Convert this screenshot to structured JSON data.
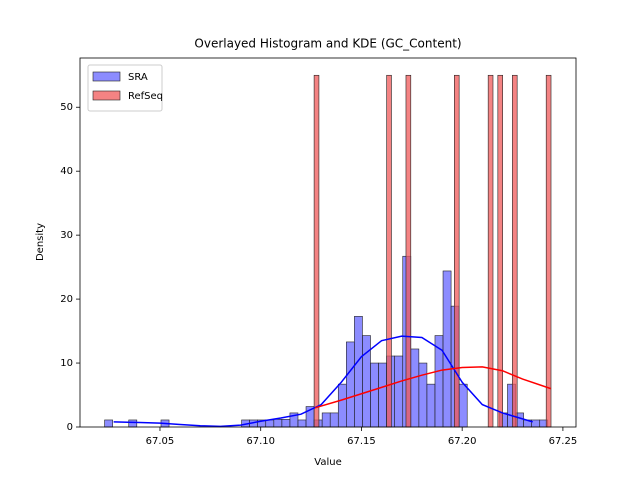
{
  "chart_data": {
    "type": "histogram",
    "title": "Overlayed Histogram and KDE (GC_Content)",
    "xlabel": "Value",
    "ylabel": "Density",
    "xlim": [
      67.0103,
      67.2565
    ],
    "ylim": [
      0,
      57.7
    ],
    "xticks": [
      67.05,
      {
        "value": 67.1,
        "label": "67.10"
      },
      67.15,
      {
        "value": 67.2,
        "label": "67.20"
      },
      67.25
    ],
    "yticks": [
      0,
      10,
      20,
      30,
      40,
      50
    ],
    "legend": "upper left",
    "series": [
      {
        "name": "SRA",
        "color": "#6666ff",
        "kde_color": "#0000ff",
        "bins": [
          67.0225,
          67.0265,
          67.0305,
          67.0345,
          67.0385,
          67.0425,
          67.0465,
          67.0505,
          67.0545,
          67.0585,
          67.0625,
          67.0665,
          67.0705,
          67.0745,
          67.0785,
          67.0825,
          67.0865,
          67.0905,
          67.0945,
          67.0985,
          67.1025,
          67.1065,
          67.1105,
          67.1145,
          67.1185,
          67.1225,
          67.1265,
          67.1305,
          67.1345,
          67.1385,
          67.1425,
          67.1465,
          67.1505,
          67.1545,
          67.1585,
          67.1625,
          67.1665,
          67.1705,
          67.1745,
          67.1785,
          67.1825,
          67.1865,
          67.1905,
          67.1945,
          67.1985,
          67.2025,
          67.2065,
          67.2105,
          67.2145,
          67.2185,
          67.2225,
          67.2265,
          67.2305,
          67.2345,
          67.2385,
          67.2425
        ],
        "values": [
          1.1,
          0,
          0,
          1.1,
          0,
          0,
          0,
          1.1,
          0,
          0,
          0,
          0,
          0,
          0,
          0,
          0,
          0,
          1.1,
          1.1,
          1.1,
          1.1,
          1.2,
          1.2,
          2.2,
          1.1,
          3.2,
          1.1,
          2.2,
          2.2,
          6.7,
          13.3,
          17.3,
          14.3,
          10,
          10,
          11.1,
          11.1,
          26.7,
          12.2,
          10,
          6.7,
          14.3,
          24.4,
          18.9,
          6.7,
          0,
          0,
          0,
          0,
          2.2,
          6.7,
          2.2,
          1.1,
          1.1,
          1.1
        ],
        "kde": {
          "x": [
            67.027,
            67.04,
            67.05,
            67.06,
            67.07,
            67.08,
            67.09,
            67.1,
            67.11,
            67.12,
            67.13,
            67.14,
            67.15,
            67.16,
            67.17,
            67.18,
            67.19,
            67.2,
            67.21,
            67.22,
            67.235
          ],
          "values": [
            0.8,
            0.7,
            0.6,
            0.4,
            0.2,
            0.1,
            0.3,
            0.9,
            1.4,
            2.0,
            3.5,
            7,
            11,
            13.5,
            14.2,
            14,
            12,
            7,
            3.5,
            2.2,
            0.8
          ]
        }
      },
      {
        "name": "RefSeq",
        "color": "#f05a5a",
        "kde_color": "#ff0000",
        "bins": [
          67.1265,
          67.1289,
          67.1313,
          67.1337,
          67.1361,
          67.1385,
          67.1409,
          67.1433,
          67.1457,
          67.1481,
          67.1505,
          67.1529,
          67.1553,
          67.1577,
          67.1601,
          67.1625,
          67.1649,
          67.1673,
          67.1697,
          67.1721,
          67.1745,
          67.1769,
          67.1793,
          67.1817,
          67.1841,
          67.1865,
          67.1889,
          67.1913,
          67.1937,
          67.1961,
          67.1985,
          67.2009,
          67.2033,
          67.2057,
          67.2081,
          67.2105,
          67.2129,
          67.2153,
          67.2177,
          67.2201,
          67.2225,
          67.2249,
          67.2273,
          67.2297,
          67.2321,
          67.2345,
          67.2369,
          67.2393,
          67.2417,
          67.2441,
          67.2465
        ],
        "values": [
          55,
          0,
          0,
          0,
          0,
          0,
          0,
          0,
          0,
          0,
          0,
          0,
          0,
          0,
          0,
          55,
          0,
          0,
          0,
          55,
          0,
          0,
          0,
          0,
          0,
          0,
          0,
          0,
          0,
          55,
          0,
          0,
          0,
          0,
          0,
          0,
          55,
          0,
          55,
          0,
          0,
          55,
          0,
          0,
          0,
          0,
          0,
          0,
          55,
          0
        ],
        "kde": {
          "x": [
            67.127,
            67.14,
            67.15,
            67.16,
            67.17,
            67.18,
            67.19,
            67.2,
            67.21,
            67.22,
            67.23,
            67.244
          ],
          "values": [
            3,
            4.2,
            5.2,
            6.2,
            7.2,
            8.1,
            8.9,
            9.3,
            9.4,
            8.8,
            7.5,
            6
          ]
        }
      }
    ]
  }
}
